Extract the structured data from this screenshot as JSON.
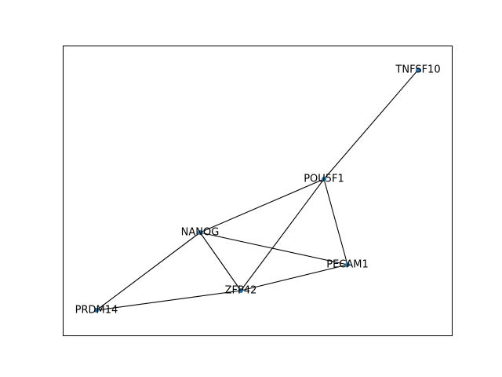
{
  "graph": {
    "node_color": "#1f77b4",
    "nodes": [
      {
        "id": "TNFSF10",
        "label": "TNFSF10"
      },
      {
        "id": "POU5F1",
        "label": "POU5F1"
      },
      {
        "id": "NANOG",
        "label": "NANOG"
      },
      {
        "id": "PECAM1",
        "label": "PECAM1"
      },
      {
        "id": "ZFP42",
        "label": "ZFP42"
      },
      {
        "id": "PRDM14",
        "label": "PRDM14"
      }
    ],
    "edges": [
      [
        "TNFSF10",
        "POU5F1"
      ],
      [
        "POU5F1",
        "NANOG"
      ],
      [
        "POU5F1",
        "ZFP42"
      ],
      [
        "POU5F1",
        "PECAM1"
      ],
      [
        "NANOG",
        "PECAM1"
      ],
      [
        "NANOG",
        "ZFP42"
      ],
      [
        "NANOG",
        "PRDM14"
      ],
      [
        "ZFP42",
        "PECAM1"
      ],
      [
        "ZFP42",
        "PRDM14"
      ]
    ]
  }
}
